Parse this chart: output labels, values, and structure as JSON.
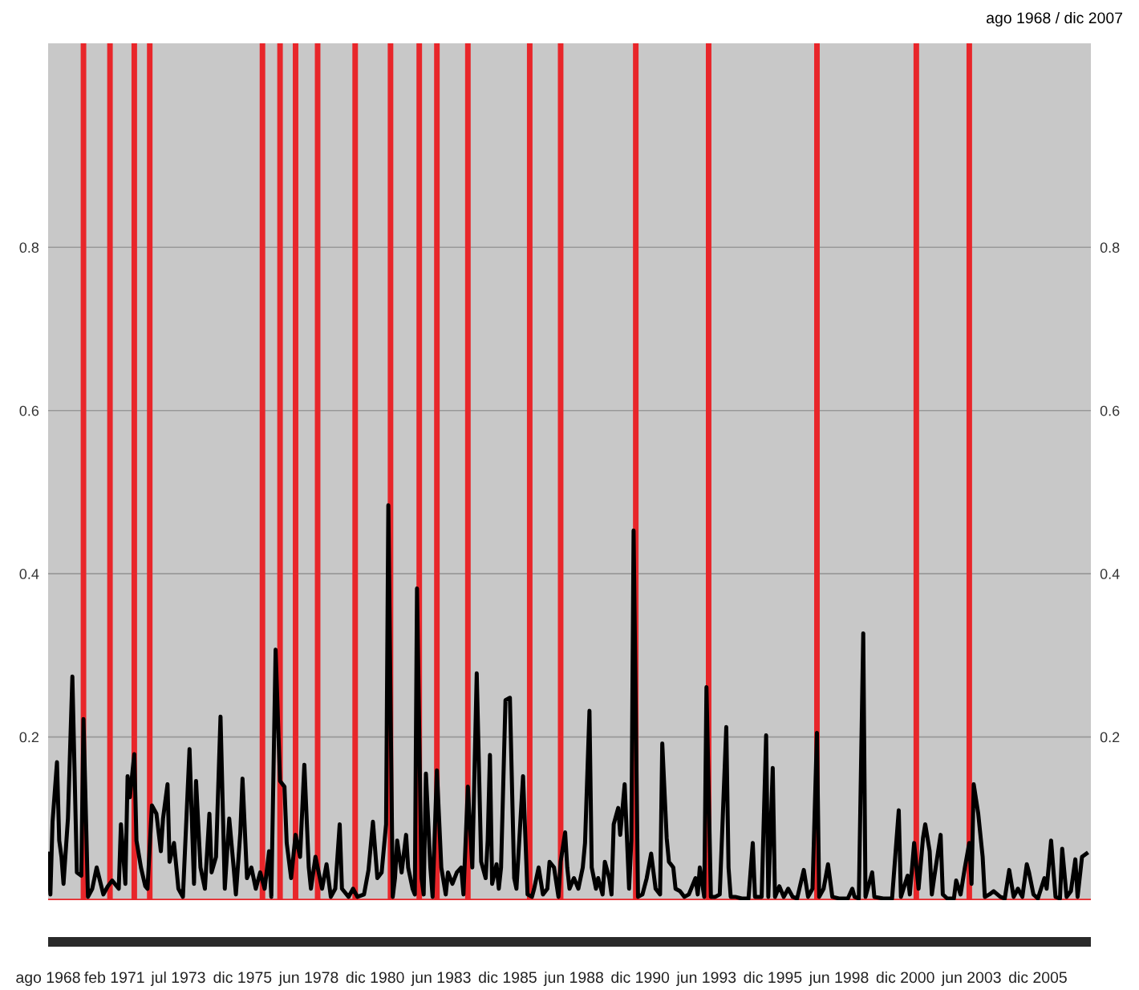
{
  "chart_data": {
    "type": "line",
    "title": "ago 1968 / dic 2007",
    "x": [
      "1968-08",
      "1968-09",
      "1968-10",
      "1968-12",
      "1969-01",
      "1969-02",
      "1969-03",
      "1969-05",
      "1969-07",
      "1969-09",
      "1969-11",
      "1969-12",
      "1970-02",
      "1970-04",
      "1970-06",
      "1970-09",
      "1970-11",
      "1971-01",
      "1971-04",
      "1971-05",
      "1971-07",
      "1971-08",
      "1971-09",
      "1971-11",
      "1971-12",
      "1972-02",
      "1972-04",
      "1972-05",
      "1972-07",
      "1972-09",
      "1972-11",
      "1972-12",
      "1973-02",
      "1973-03",
      "1973-05",
      "1973-07",
      "1973-09",
      "1973-12",
      "1974-02",
      "1974-03",
      "1974-05",
      "1974-07",
      "1974-09",
      "1974-10",
      "1974-12",
      "1975-02",
      "1975-04",
      "1975-06",
      "1975-08",
      "1975-09",
      "1975-11",
      "1975-12",
      "1976-02",
      "1976-04",
      "1976-06",
      "1976-08",
      "1976-10",
      "1976-12",
      "1977-01",
      "1977-03",
      "1977-05",
      "1977-07",
      "1977-08",
      "1977-10",
      "1977-12",
      "1978-02",
      "1978-04",
      "1978-06",
      "1978-07",
      "1978-09",
      "1978-12",
      "1979-02",
      "1979-04",
      "1979-06",
      "1979-08",
      "1979-09",
      "1979-12",
      "1980-02",
      "1980-04",
      "1980-07",
      "1980-09",
      "1980-11",
      "1981-01",
      "1981-03",
      "1981-05",
      "1981-06",
      "1981-08",
      "1981-09",
      "1981-10",
      "1981-12",
      "1982-02",
      "1982-03",
      "1982-05",
      "1982-06",
      "1982-07",
      "1982-09",
      "1982-10",
      "1982-11",
      "1983-01",
      "1983-02",
      "1983-04",
      "1983-06",
      "1983-08",
      "1983-09",
      "1983-11",
      "1984-01",
      "1984-03",
      "1984-04",
      "1984-06",
      "1984-08",
      "1984-10",
      "1984-12",
      "1985-02",
      "1985-03",
      "1985-04",
      "1985-05",
      "1985-07",
      "1985-08",
      "1985-09",
      "1985-11",
      "1986-01",
      "1986-03",
      "1986-04",
      "1986-07",
      "1986-09",
      "1986-11",
      "1986-12",
      "1987-02",
      "1987-04",
      "1987-06",
      "1987-07",
      "1987-09",
      "1987-11",
      "1987-12",
      "1988-02",
      "1988-03",
      "1988-04",
      "1988-06",
      "1988-08",
      "1988-10",
      "1988-11",
      "1989-01",
      "1989-02",
      "1989-04",
      "1989-05",
      "1989-07",
      "1989-08",
      "1989-10",
      "1989-11",
      "1989-12",
      "1990-02",
      "1990-03",
      "1990-05",
      "1990-07",
      "1990-08",
      "1990-09",
      "1990-11",
      "1991-01",
      "1991-03",
      "1991-05",
      "1991-07",
      "1991-09",
      "1991-10",
      "1991-12",
      "1992-01",
      "1992-03",
      "1992-04",
      "1992-06",
      "1992-08",
      "1992-10",
      "1993-01",
      "1993-02",
      "1993-03",
      "1993-05",
      "1993-06",
      "1993-08",
      "1993-10",
      "1993-12",
      "1994-03",
      "1994-04",
      "1994-05",
      "1994-07",
      "1994-10",
      "1995-01",
      "1995-03",
      "1995-04",
      "1995-07",
      "1995-09",
      "1995-10",
      "1995-12",
      "1996-01",
      "1996-03",
      "1996-05",
      "1996-07",
      "1996-09",
      "1996-11",
      "1997-02",
      "1997-04",
      "1997-06",
      "1997-08",
      "1997-09",
      "1997-11",
      "1998-01",
      "1998-03",
      "1998-06",
      "1998-10",
      "1998-12",
      "1999-01",
      "1999-03",
      "1999-05",
      "1999-06",
      "1999-09",
      "1999-10",
      "2000-02",
      "2000-06",
      "2000-09",
      "2000-10",
      "2001-01",
      "2001-02",
      "2001-04",
      "2001-06",
      "2001-08",
      "2001-09",
      "2001-11",
      "2001-12",
      "2002-01",
      "2002-04",
      "2002-05",
      "2002-07",
      "2002-10",
      "2002-11",
      "2003-01",
      "2003-03",
      "2003-05",
      "2003-06",
      "2003-07",
      "2003-09",
      "2003-11",
      "2003-12",
      "2004-02",
      "2004-04",
      "2004-07",
      "2004-09",
      "2004-11",
      "2005-01",
      "2005-03",
      "2005-05",
      "2005-07",
      "2005-08",
      "2005-10",
      "2005-12",
      "2006-03",
      "2006-04",
      "2006-06",
      "2006-08",
      "2006-10",
      "2006-11",
      "2007-01",
      "2007-03",
      "2007-05",
      "2007-06",
      "2007-08",
      "2007-10"
    ],
    "series": [
      {
        "color": "#000000",
        "values": [
          0.057,
          0.007,
          0.096,
          0.169,
          0.073,
          0.053,
          0.02,
          0.1,
          0.274,
          0.034,
          0.03,
          0.222,
          0.004,
          0.014,
          0.04,
          0.007,
          0.017,
          0.024,
          0.014,
          0.093,
          0.02,
          0.152,
          0.126,
          0.179,
          0.073,
          0.04,
          0.017,
          0.014,
          0.116,
          0.106,
          0.06,
          0.1,
          0.142,
          0.047,
          0.07,
          0.014,
          0.004,
          0.185,
          0.02,
          0.146,
          0.04,
          0.014,
          0.106,
          0.034,
          0.053,
          0.225,
          0.014,
          0.1,
          0.04,
          0.007,
          0.083,
          0.149,
          0.027,
          0.04,
          0.014,
          0.034,
          0.014,
          0.06,
          0.004,
          0.307,
          0.146,
          0.139,
          0.07,
          0.027,
          0.08,
          0.053,
          0.166,
          0.04,
          0.014,
          0.053,
          0.014,
          0.044,
          0.004,
          0.014,
          0.093,
          0.014,
          0.004,
          0.014,
          0.004,
          0.007,
          0.037,
          0.096,
          0.027,
          0.034,
          0.093,
          0.484,
          0.004,
          0.027,
          0.073,
          0.034,
          0.08,
          0.04,
          0.014,
          0.007,
          0.382,
          0.027,
          0.007,
          0.155,
          0.04,
          0.004,
          0.159,
          0.04,
          0.007,
          0.034,
          0.02,
          0.034,
          0.04,
          0.007,
          0.139,
          0.04,
          0.278,
          0.047,
          0.027,
          0.073,
          0.178,
          0.02,
          0.044,
          0.014,
          0.04,
          0.245,
          0.248,
          0.027,
          0.014,
          0.152,
          0.007,
          0.004,
          0.014,
          0.04,
          0.007,
          0.014,
          0.047,
          0.04,
          0.004,
          0.047,
          0.083,
          0.04,
          0.014,
          0.027,
          0.014,
          0.04,
          0.07,
          0.232,
          0.04,
          0.014,
          0.027,
          0.007,
          0.047,
          0.027,
          0.007,
          0.093,
          0.113,
          0.08,
          0.142,
          0.014,
          0.073,
          0.453,
          0.004,
          0.007,
          0.027,
          0.057,
          0.014,
          0.007,
          0.192,
          0.076,
          0.047,
          0.04,
          0.014,
          0.011,
          0.004,
          0.007,
          0.027,
          0.007,
          0.04,
          0.004,
          0.261,
          0.004,
          0.004,
          0.007,
          0.212,
          0.04,
          0.004,
          0.004,
          0.002,
          0.002,
          0.07,
          0.004,
          0.004,
          0.202,
          0.004,
          0.162,
          0.004,
          0.017,
          0.004,
          0.014,
          0.004,
          0.002,
          0.037,
          0.004,
          0.014,
          0.205,
          0.004,
          0.014,
          0.044,
          0.004,
          0.002,
          0.002,
          0.014,
          0.004,
          0.002,
          0.327,
          0.004,
          0.034,
          0.004,
          0.002,
          0.002,
          0.11,
          0.004,
          0.03,
          0.007,
          0.07,
          0.014,
          0.076,
          0.093,
          0.06,
          0.007,
          0.027,
          0.08,
          0.007,
          0.002,
          0.002,
          0.024,
          0.007,
          0.04,
          0.07,
          0.02,
          0.142,
          0.106,
          0.053,
          0.004,
          0.007,
          0.011,
          0.004,
          0.002,
          0.037,
          0.004,
          0.014,
          0.004,
          0.044,
          0.034,
          0.007,
          0.002,
          0.027,
          0.014,
          0.073,
          0.004,
          0.002,
          0.063,
          0.004,
          0.011,
          0.05,
          0.004,
          0.053,
          0.057
        ]
      }
    ],
    "xlim": [
      "1968-08",
      "2007-12"
    ],
    "xticks": [
      {
        "value": "1968-08",
        "label": "ago 1968"
      },
      {
        "value": "1971-02",
        "label": "feb 1971"
      },
      {
        "value": "1973-07",
        "label": "jul 1973"
      },
      {
        "value": "1975-12",
        "label": "dic 1975"
      },
      {
        "value": "1978-06",
        "label": "jun 1978"
      },
      {
        "value": "1980-12",
        "label": "dic 1980"
      },
      {
        "value": "1983-06",
        "label": "jun 1983"
      },
      {
        "value": "1985-12",
        "label": "dic 1985"
      },
      {
        "value": "1988-06",
        "label": "jun 1988"
      },
      {
        "value": "1990-12",
        "label": "dic 1990"
      },
      {
        "value": "1993-06",
        "label": "jun 1993"
      },
      {
        "value": "1995-12",
        "label": "dic 1995"
      },
      {
        "value": "1998-06",
        "label": "jun 1998"
      },
      {
        "value": "2000-12",
        "label": "dic 2000"
      },
      {
        "value": "2003-06",
        "label": "jun 2003"
      },
      {
        "value": "2005-12",
        "label": "dic 2005"
      }
    ],
    "ylim": [
      0,
      1.05
    ],
    "yticks": [
      0.2,
      0.4,
      0.6,
      0.8
    ],
    "y2lim": [
      0,
      1.05
    ],
    "y2ticks": [
      0.2,
      0.4,
      0.6,
      0.8
    ],
    "grid": "y",
    "line_style": "solid",
    "marker": "none",
    "ref_lines": [
      {
        "axis": "y",
        "value": 0,
        "color": "#e8262a"
      },
      {
        "axis": "x",
        "value": "1969-12",
        "color": "#e8262a"
      },
      {
        "axis": "x",
        "value": "1970-12",
        "color": "#e8262a"
      },
      {
        "axis": "x",
        "value": "1971-11",
        "color": "#e8262a"
      },
      {
        "axis": "x",
        "value": "1972-06",
        "color": "#e8262a"
      },
      {
        "axis": "x",
        "value": "1976-09",
        "color": "#e8262a"
      },
      {
        "axis": "x",
        "value": "1977-05",
        "color": "#e8262a"
      },
      {
        "axis": "x",
        "value": "1977-12",
        "color": "#e8262a"
      },
      {
        "axis": "x",
        "value": "1978-10",
        "color": "#e8262a"
      },
      {
        "axis": "x",
        "value": "1980-03",
        "color": "#e8262a"
      },
      {
        "axis": "x",
        "value": "1981-07",
        "color": "#e8262a"
      },
      {
        "axis": "x",
        "value": "1982-08",
        "color": "#e8262a"
      },
      {
        "axis": "x",
        "value": "1983-04",
        "color": "#e8262a"
      },
      {
        "axis": "x",
        "value": "1984-06",
        "color": "#e8262a"
      },
      {
        "axis": "x",
        "value": "1986-10",
        "color": "#e8262a"
      },
      {
        "axis": "x",
        "value": "1987-12",
        "color": "#e8262a"
      },
      {
        "axis": "x",
        "value": "1990-10",
        "color": "#e8262a"
      },
      {
        "axis": "x",
        "value": "1993-07",
        "color": "#e8262a"
      },
      {
        "axis": "x",
        "value": "1997-08",
        "color": "#e8262a"
      },
      {
        "axis": "x",
        "value": "2001-05",
        "color": "#e8262a"
      },
      {
        "axis": "x",
        "value": "2003-05",
        "color": "#e8262a"
      }
    ]
  }
}
